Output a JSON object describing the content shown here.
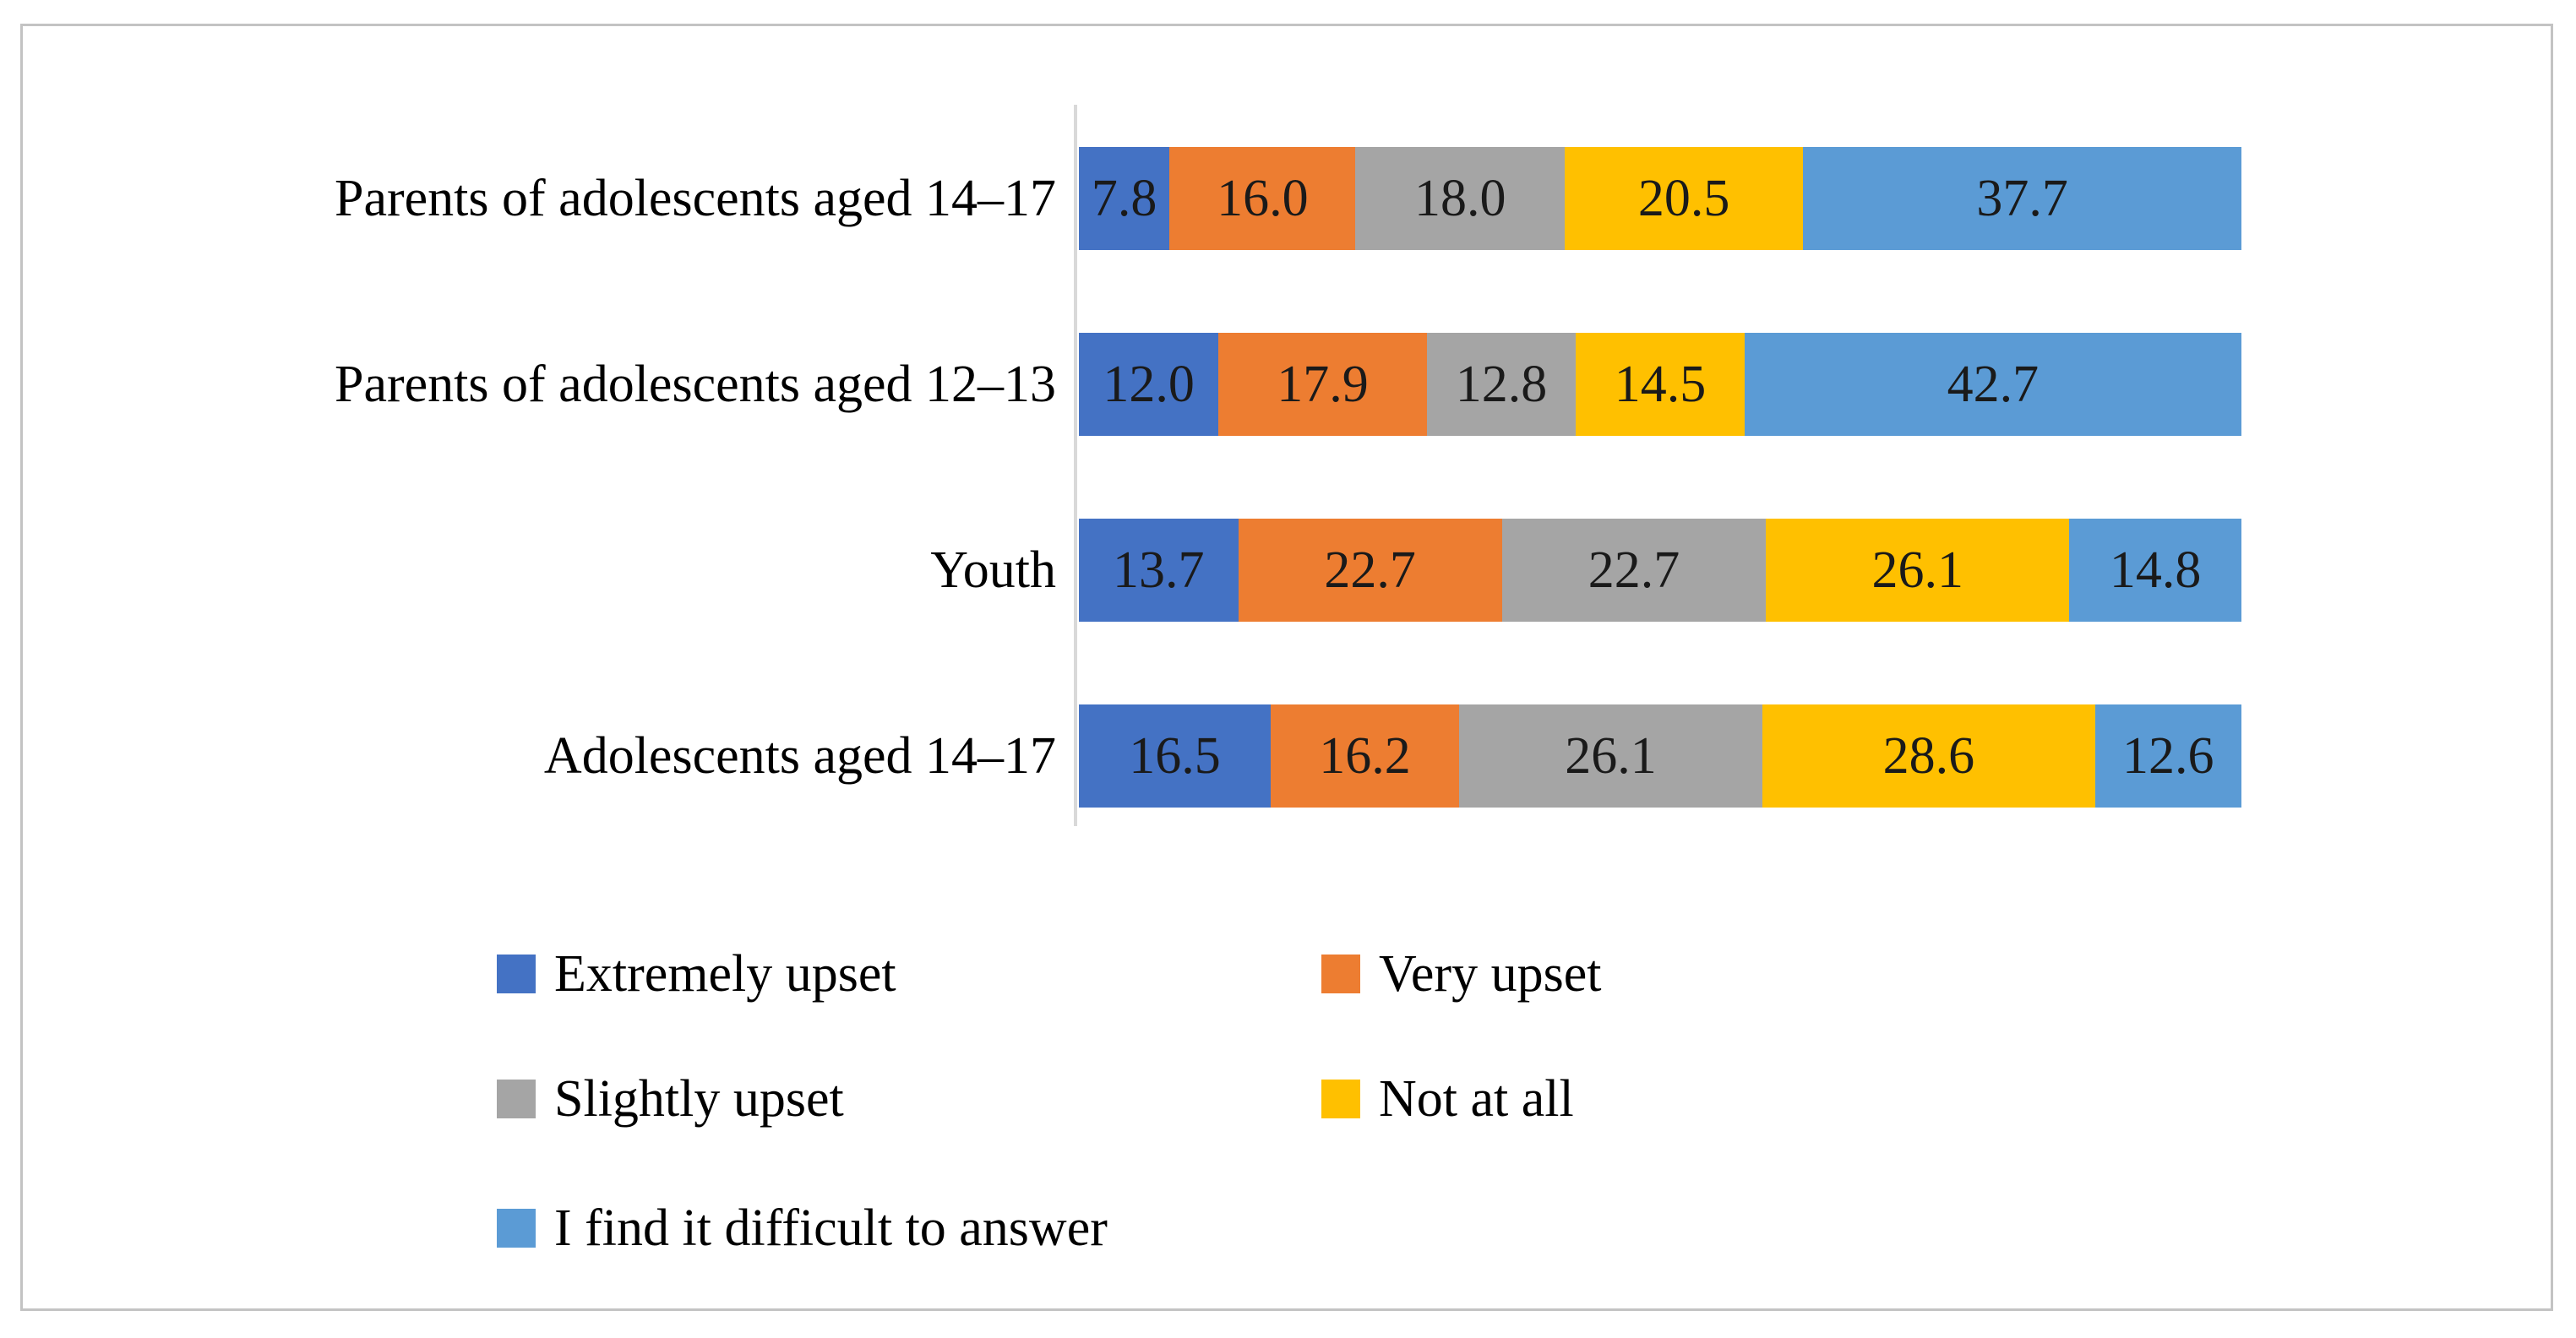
{
  "figure": {
    "background": "#ffffff",
    "frame_border_color": "#c3c3c3",
    "axis_line_color": "#d9d9d9"
  },
  "chart_data": {
    "type": "bar",
    "orientation": "horizontal",
    "stacked": true,
    "title": "",
    "xlabel": "",
    "ylabel": "",
    "xlim": [
      0,
      100
    ],
    "grid": false,
    "value_label_format": "one-decimal",
    "value_label_color": "#1a1a1a",
    "legend_position": "bottom, two columns",
    "categories": [
      "Parents of adolescents aged 14–17",
      "Parents of adolescents aged 12–13",
      "Youth",
      "Adolescents aged 14–17"
    ],
    "series": [
      {
        "name": "Extremely upset",
        "color": "#4472C4",
        "values": [
          7.8,
          12.0,
          13.7,
          16.5
        ]
      },
      {
        "name": "Very upset",
        "color": "#ED7D31",
        "values": [
          16.0,
          17.9,
          22.7,
          16.2
        ]
      },
      {
        "name": "Slightly upset",
        "color": "#A5A5A5",
        "values": [
          18.0,
          12.8,
          22.7,
          26.1
        ]
      },
      {
        "name": "Not at all",
        "color": "#FFC000",
        "values": [
          20.5,
          14.5,
          26.1,
          28.6
        ]
      },
      {
        "name": "I find it difficult to answer",
        "color": "#5B9BD5",
        "values": [
          37.7,
          42.7,
          14.8,
          12.6
        ]
      }
    ]
  }
}
